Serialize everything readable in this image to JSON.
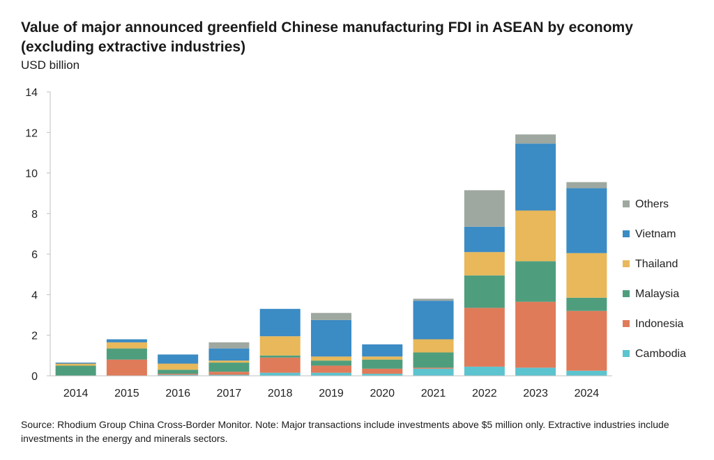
{
  "chart_data": {
    "type": "bar",
    "stacked": true,
    "title": "Value of major announced greenfield Chinese manufacturing FDI in ASEAN by economy (excluding extractive industries)",
    "unit_label": "USD billion",
    "source": "Source: Rhodium Group China Cross-Border Monitor. Note: Major transactions include investments above $5 million only. Extractive industries include investments in the energy and minerals sectors.",
    "categories": [
      "2014",
      "2015",
      "2016",
      "2017",
      "2018",
      "2019",
      "2020",
      "2021",
      "2022",
      "2023",
      "2024"
    ],
    "ylim": [
      0,
      14
    ],
    "yticks": [
      0,
      2,
      4,
      6,
      8,
      10,
      12,
      14
    ],
    "legend_position": "right",
    "grid": false,
    "series": [
      {
        "name": "Cambodia",
        "color": "#5bc4cf",
        "values": [
          0.0,
          0.0,
          0.05,
          0.05,
          0.15,
          0.15,
          0.1,
          0.35,
          0.45,
          0.4,
          0.25
        ]
      },
      {
        "name": "Indonesia",
        "color": "#e07b5a",
        "values": [
          0.0,
          0.8,
          0.05,
          0.15,
          0.75,
          0.35,
          0.25,
          0.05,
          2.9,
          3.25,
          2.95
        ]
      },
      {
        "name": "Malaysia",
        "color": "#4e9e7e",
        "values": [
          0.5,
          0.55,
          0.2,
          0.45,
          0.1,
          0.25,
          0.45,
          0.75,
          1.6,
          2.0,
          0.65
        ]
      },
      {
        "name": "Thailand",
        "color": "#e8b85a",
        "values": [
          0.1,
          0.3,
          0.3,
          0.1,
          0.95,
          0.2,
          0.15,
          0.65,
          1.15,
          2.5,
          2.2
        ]
      },
      {
        "name": "Vietnam",
        "color": "#3b8bc4",
        "values": [
          0.05,
          0.15,
          0.45,
          0.6,
          1.35,
          1.8,
          0.6,
          1.9,
          1.25,
          3.3,
          3.2
        ]
      },
      {
        "name": "Others",
        "color": "#9ea8a0",
        "values": [
          0.0,
          0.0,
          0.0,
          0.3,
          0.0,
          0.35,
          0.0,
          0.1,
          1.8,
          0.45,
          0.3
        ]
      }
    ]
  }
}
